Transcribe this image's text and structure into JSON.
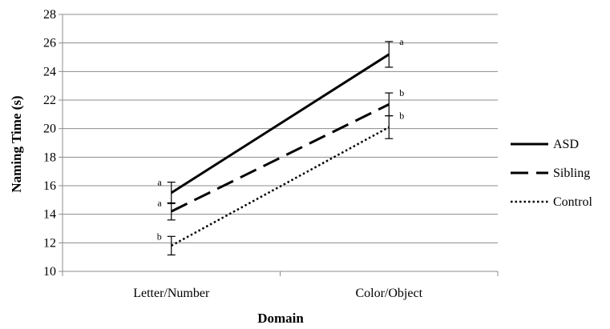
{
  "chart_data": {
    "type": "line",
    "title": "",
    "xlabel": "Domain",
    "ylabel": "Naming Time (s)",
    "categories": [
      "Letter/Number",
      "Color/Object"
    ],
    "ylim": [
      10,
      28
    ],
    "yticks": [
      10,
      12,
      14,
      16,
      18,
      20,
      22,
      24,
      26,
      28
    ],
    "grid": true,
    "legend_position": "right",
    "series": [
      {
        "name": "ASD",
        "style": "solid",
        "color": "#000000",
        "values": [
          15.5,
          25.2
        ],
        "error": [
          0.75,
          0.9
        ],
        "sig_labels": [
          "a",
          "a"
        ]
      },
      {
        "name": "Sibling",
        "style": "dashed",
        "color": "#000000",
        "values": [
          14.2,
          21.7
        ],
        "error": [
          0.6,
          0.8
        ],
        "sig_labels": [
          "a",
          "b"
        ]
      },
      {
        "name": "Control",
        "style": "dotted",
        "color": "#000000",
        "values": [
          11.8,
          20.1
        ],
        "error": [
          0.65,
          0.8
        ],
        "sig_labels": [
          "b",
          "b"
        ]
      }
    ]
  }
}
